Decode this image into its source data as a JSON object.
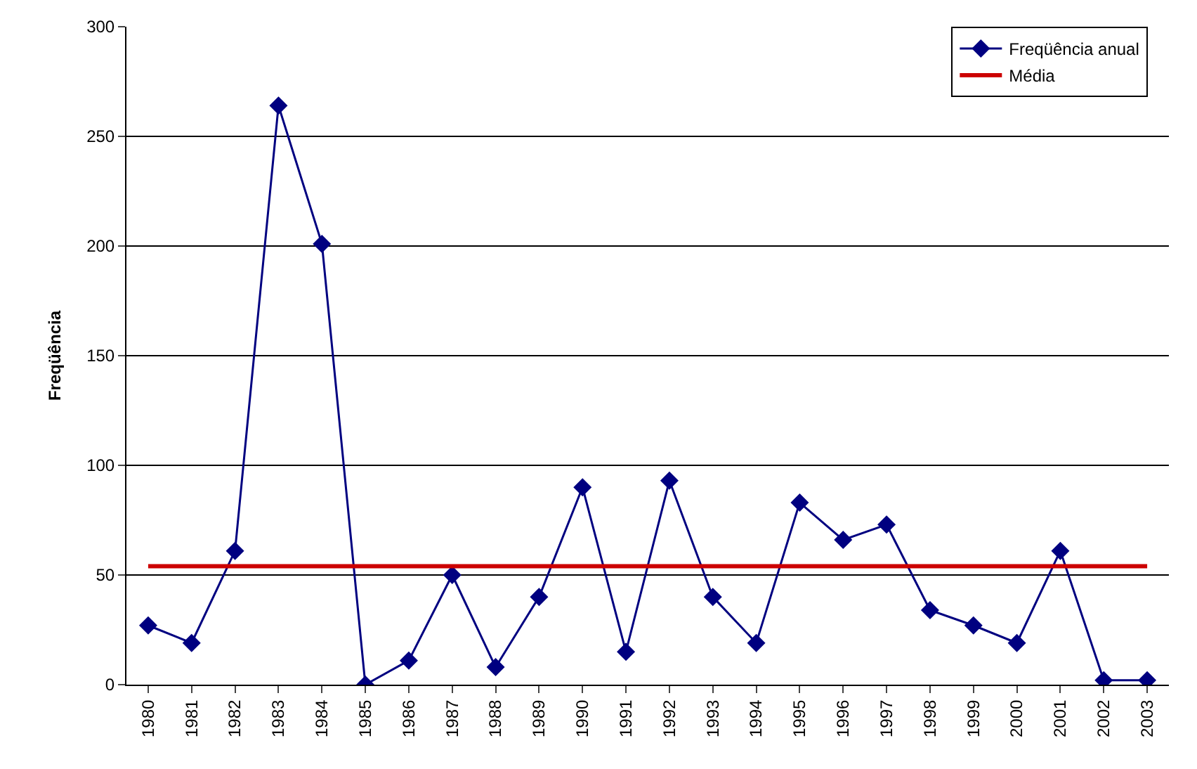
{
  "chart_data": {
    "type": "line",
    "ylabel": "Freqüência",
    "categories": [
      "1980",
      "1981",
      "1982",
      "1983",
      "1984",
      "1985",
      "1986",
      "1987",
      "1988",
      "1989",
      "1990",
      "1991",
      "1992",
      "1993",
      "1994",
      "1995",
      "1996",
      "1997",
      "1998",
      "1999",
      "2000",
      "2001",
      "2002",
      "2003"
    ],
    "series": [
      {
        "name": "Freqüência anual",
        "color": "#000080",
        "marker": "diamond",
        "values": [
          27,
          19,
          61,
          264,
          201,
          0,
          11,
          50,
          8,
          40,
          90,
          15,
          93,
          40,
          19,
          83,
          66,
          73,
          34,
          27,
          19,
          61,
          2,
          2
        ]
      },
      {
        "name": "Média",
        "color": "#cc0000",
        "marker": "none",
        "values": [
          54,
          54,
          54,
          54,
          54,
          54,
          54,
          54,
          54,
          54,
          54,
          54,
          54,
          54,
          54,
          54,
          54,
          54,
          54,
          54,
          54,
          54,
          54,
          54
        ]
      }
    ],
    "ylim": [
      0,
      300
    ],
    "yticks": [
      0,
      50,
      100,
      150,
      200,
      250,
      300
    ],
    "grid": "y",
    "legend": "top right"
  }
}
